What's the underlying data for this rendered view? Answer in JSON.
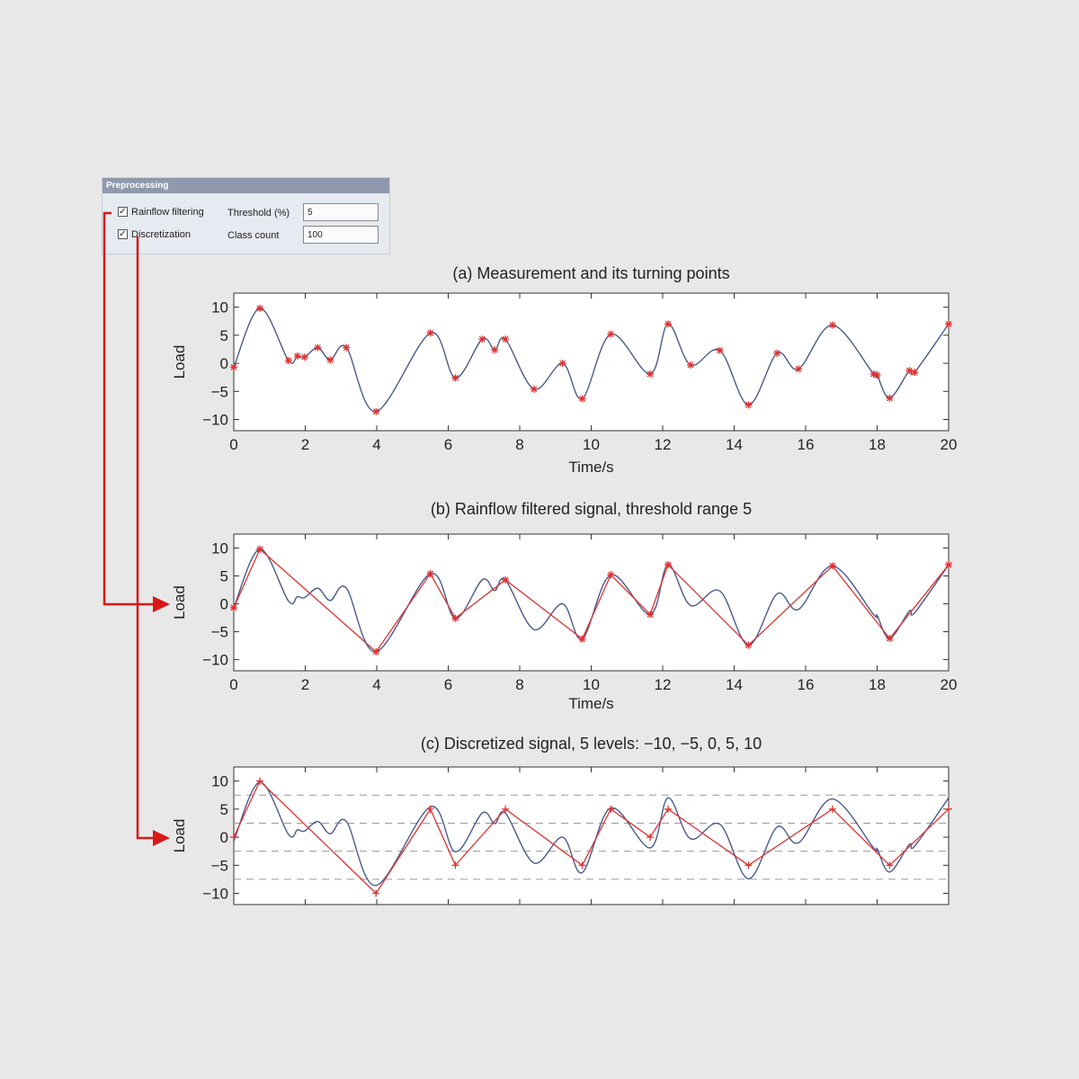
{
  "panel": {
    "title": "Preprocessing",
    "rainflow_label": "Rainflow filtering",
    "rainflow_checked": true,
    "discretization_label": "Discretization",
    "discretization_checked": true,
    "threshold_label": "Threshold (%)",
    "threshold_value": "5",
    "class_count_label": "Class count",
    "class_count_value": "100"
  },
  "colors": {
    "signal": "#4a5a8c",
    "marker": "#e03030",
    "arrow": "#d81818"
  },
  "chart_data": [
    {
      "type": "line",
      "title": "(a) Measurement and its turning points",
      "xlabel": "Time/s",
      "ylabel": "Load",
      "xlim": [
        0,
        20
      ],
      "ylim": [
        -12,
        12.5
      ],
      "xticks": [
        0,
        2,
        4,
        6,
        8,
        10,
        12,
        14,
        16,
        18,
        20
      ],
      "yticks": [
        10,
        5,
        0,
        -5,
        -10
      ],
      "series": [
        {
          "role": "signal",
          "x": [
            0,
            0.73,
            1.53,
            1.78,
            1.98,
            2.35,
            2.7,
            3.15,
            3.98,
            5.5,
            6.2,
            6.95,
            7.3,
            7.6,
            8.4,
            9.2,
            9.75,
            10.55,
            11.65,
            12.15,
            12.78,
            13.6,
            14.4,
            15.2,
            15.8,
            16.75,
            17.9,
            18.0,
            18.35,
            18.9,
            19.05,
            20
          ],
          "y": [
            -0.7,
            9.8,
            0.5,
            1.3,
            1.1,
            2.8,
            0.6,
            2.8,
            -8.6,
            5.4,
            -2.6,
            4.3,
            2.4,
            4.3,
            -4.6,
            0,
            -6.3,
            5.2,
            -1.9,
            7.0,
            -0.3,
            2.3,
            -7.4,
            1.8,
            -1,
            6.8,
            -1.9,
            -2.1,
            -6.2,
            -1.3,
            -1.6,
            7.0
          ]
        },
        {
          "role": "turning_points",
          "marker": "*",
          "x": [
            0,
            0.73,
            1.53,
            1.78,
            1.98,
            2.35,
            2.7,
            3.15,
            3.98,
            5.5,
            6.2,
            6.95,
            7.3,
            7.6,
            8.4,
            9.2,
            9.75,
            10.55,
            11.65,
            12.15,
            12.78,
            13.6,
            14.4,
            15.2,
            15.8,
            16.75,
            17.9,
            18.0,
            18.35,
            18.9,
            19.05,
            20
          ],
          "y": [
            -0.7,
            9.8,
            0.5,
            1.3,
            1.1,
            2.8,
            0.6,
            2.8,
            -8.6,
            5.4,
            -2.6,
            4.3,
            2.4,
            4.3,
            -4.6,
            0,
            -6.3,
            5.2,
            -1.9,
            7.0,
            -0.3,
            2.3,
            -7.4,
            1.8,
            -1,
            6.8,
            -1.9,
            -2.1,
            -6.2,
            -1.3,
            -1.6,
            7.0
          ]
        }
      ]
    },
    {
      "type": "line",
      "title": "(b) Rainflow filtered signal, threshold range 5",
      "xlabel": "Time/s",
      "ylabel": "Load",
      "xlim": [
        0,
        20
      ],
      "ylim": [
        -12,
        12.5
      ],
      "xticks": [
        0,
        2,
        4,
        6,
        8,
        10,
        12,
        14,
        16,
        18,
        20
      ],
      "yticks": [
        10,
        5,
        0,
        -5,
        -10
      ],
      "series": [
        {
          "role": "signal",
          "x": [
            0,
            0.73,
            1.53,
            1.78,
            1.98,
            2.35,
            2.7,
            3.15,
            3.98,
            5.5,
            6.2,
            6.95,
            7.3,
            7.6,
            8.4,
            9.2,
            9.75,
            10.55,
            11.65,
            12.15,
            12.78,
            13.6,
            14.4,
            15.2,
            15.8,
            16.75,
            17.9,
            18.0,
            18.35,
            18.9,
            19.05,
            20
          ],
          "y": [
            -0.7,
            9.8,
            0.5,
            1.3,
            1.1,
            2.8,
            0.6,
            2.8,
            -8.6,
            5.4,
            -2.6,
            4.3,
            2.4,
            4.3,
            -4.6,
            0,
            -6.3,
            5.2,
            -1.9,
            7.0,
            -0.3,
            2.3,
            -7.4,
            1.8,
            -1,
            6.8,
            -1.9,
            -2.1,
            -6.2,
            -1.3,
            -1.6,
            7.0
          ]
        },
        {
          "role": "filtered",
          "marker": "*",
          "x": [
            0,
            0.73,
            3.98,
            5.5,
            6.2,
            7.6,
            9.75,
            10.55,
            11.65,
            12.15,
            14.4,
            16.75,
            18.35,
            20
          ],
          "y": [
            -0.7,
            9.8,
            -8.6,
            5.4,
            -2.6,
            4.3,
            -6.3,
            5.2,
            -1.9,
            7.0,
            -7.4,
            6.8,
            -6.2,
            7.0
          ]
        }
      ]
    },
    {
      "type": "line",
      "title": "(c) Discretized signal, 5 levels: −10, −5, 0, 5, 10",
      "ylabel": "Load",
      "xlim": [
        0,
        20
      ],
      "ylim": [
        -12,
        12.5
      ],
      "yticks": [
        10,
        5,
        0,
        -5,
        -10
      ],
      "class_boundaries": [
        7.5,
        2.5,
        -2.5,
        -7.5
      ],
      "series": [
        {
          "role": "signal",
          "x": [
            0,
            0.73,
            1.53,
            1.78,
            1.98,
            2.35,
            2.7,
            3.15,
            3.98,
            5.5,
            6.2,
            6.95,
            7.3,
            7.6,
            8.4,
            9.2,
            9.75,
            10.55,
            11.65,
            12.15,
            12.78,
            13.6,
            14.4,
            15.2,
            15.8,
            16.75,
            17.9,
            18.0,
            18.35,
            18.9,
            19.05,
            20
          ],
          "y": [
            -0.7,
            9.8,
            0.5,
            1.3,
            1.1,
            2.8,
            0.6,
            2.8,
            -8.6,
            5.4,
            -2.6,
            4.3,
            2.4,
            4.3,
            -4.6,
            0,
            -6.3,
            5.2,
            -1.9,
            7.0,
            -0.3,
            2.3,
            -7.4,
            1.8,
            -1,
            6.8,
            -1.9,
            -2.1,
            -6.2,
            -1.3,
            -1.6,
            7.0
          ]
        },
        {
          "role": "discretized",
          "marker": "+",
          "x": [
            0,
            0.73,
            3.98,
            5.5,
            6.2,
            7.6,
            9.75,
            10.55,
            11.65,
            12.15,
            14.4,
            16.75,
            18.35,
            20
          ],
          "y": [
            0,
            10,
            -10,
            5,
            -5,
            5,
            -5,
            5,
            0,
            5,
            -5,
            5,
            -5,
            5
          ]
        }
      ]
    }
  ]
}
